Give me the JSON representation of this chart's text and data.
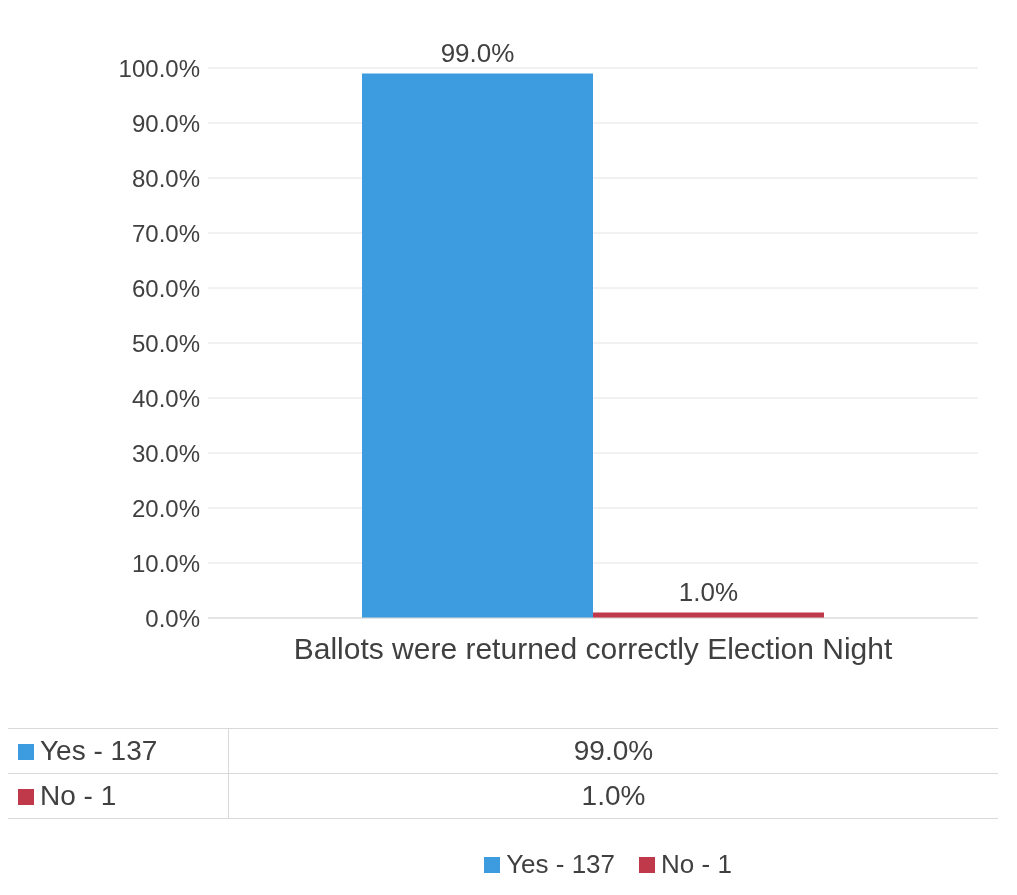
{
  "chart_data": {
    "type": "bar",
    "categories": [
      "Ballots were returned correctly Election Night"
    ],
    "series": [
      {
        "name": "Yes - 137",
        "color": "#3d9be0",
        "values": [
          99.0
        ],
        "value_labels": [
          "99.0%"
        ]
      },
      {
        "name": "No - 1",
        "color": "#c0394b",
        "values": [
          1.0
        ],
        "value_labels": [
          "1.0%"
        ]
      }
    ],
    "ylim": [
      0,
      100
    ],
    "yticks": [
      {
        "value": 0,
        "label": "0.0%"
      },
      {
        "value": 10,
        "label": "10.0%"
      },
      {
        "value": 20,
        "label": "20.0%"
      },
      {
        "value": 30,
        "label": "30.0%"
      },
      {
        "value": 40,
        "label": "40.0%"
      },
      {
        "value": 50,
        "label": "50.0%"
      },
      {
        "value": 60,
        "label": "60.0%"
      },
      {
        "value": 70,
        "label": "70.0%"
      },
      {
        "value": 80,
        "label": "80.0%"
      },
      {
        "value": 90,
        "label": "90.0%"
      },
      {
        "value": 100,
        "label": "100.0%"
      }
    ],
    "grid": "y",
    "legend": "bottom"
  }
}
